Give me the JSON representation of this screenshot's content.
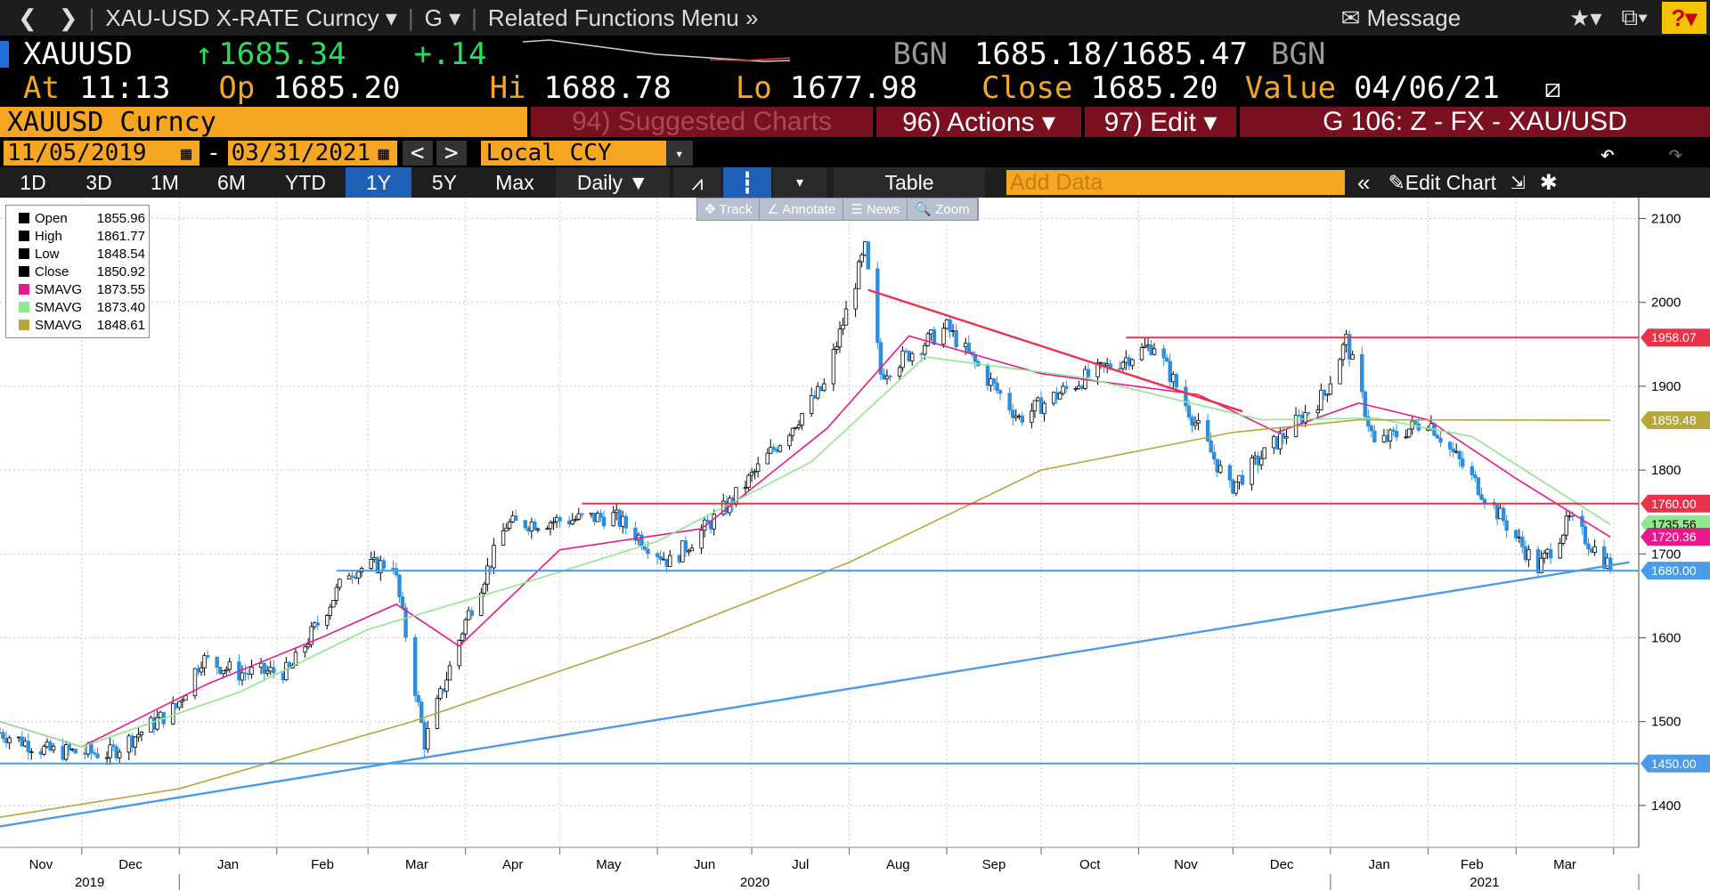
{
  "toolbar": {
    "back": "❮",
    "forward": "❯",
    "security": "XAU-USD X-RATE Curncy",
    "func": "G",
    "related": "Related Functions Menu",
    "message": "Message",
    "help": "?"
  },
  "quote": {
    "ticker": "XAUUSD",
    "arrow": "↑",
    "last": "1685.34",
    "change": "+.14",
    "bid_src": "BGN",
    "bid": "1685.18",
    "slash": "/",
    "ask": "1685.47",
    "ask_src": "BGN",
    "at_label": "At",
    "time": "11:13",
    "op_label": "Op",
    "open": "1685.20",
    "hi_label": "Hi",
    "high": "1688.78",
    "lo_label": "Lo",
    "low": "1677.98",
    "close_label": "Close",
    "close": "1685.20",
    "value_label": "Value",
    "value_date": "04/06/21"
  },
  "menu": {
    "security": "XAUUSD Curncy",
    "suggested": "94) Suggested Charts",
    "actions": "96) Actions ▾",
    "edit": "97) Edit ▾",
    "chart_id": "G 106: Z - FX - XAU/USD"
  },
  "range": {
    "start": "11/05/2019",
    "dash": "-",
    "end": "03/31/2021",
    "prev": "<",
    "next": ">",
    "currency": "Local CCY"
  },
  "periods": [
    "1D",
    "3D",
    "1M",
    "6M",
    "YTD",
    "1Y",
    "5Y",
    "Max"
  ],
  "active_period": "1Y",
  "frequency": "Daily ▼",
  "table_label": "Table",
  "add_data_placeholder": "Add Data",
  "edit_chart": "Edit Chart",
  "chart_tools": [
    "✥ Track",
    "∠ Annotate",
    "☰ News",
    "🔍 Zoom"
  ],
  "legend": [
    {
      "name": "Open",
      "value": "1855.96",
      "color": "#000000"
    },
    {
      "name": "High",
      "value": "1861.77",
      "color": "#000000"
    },
    {
      "name": "Low",
      "value": "1848.54",
      "color": "#000000"
    },
    {
      "name": "Close",
      "value": "1850.92",
      "color": "#000000"
    },
    {
      "name": "SMAVG",
      "value": "1873.55",
      "color": "#e8198b"
    },
    {
      "name": "SMAVG",
      "value": "1873.40",
      "color": "#8ee88e"
    },
    {
      "name": "SMAVG",
      "value": "1848.61",
      "color": "#b5a838"
    }
  ],
  "colors": {
    "up": "#000000",
    "down": "#2a8fe0",
    "sma1": "#e8198b",
    "sma2": "#8ee88e",
    "sma3": "#b5a838",
    "hline_red": "#e8334a",
    "hline_blue": "#4a9be8"
  },
  "chart_data": {
    "type": "candlestick",
    "x_range": [
      "2019-11-05",
      "2021-03-31"
    ],
    "ylim": [
      1350,
      2125
    ],
    "yticks": [
      1400,
      1500,
      1600,
      1700,
      1800,
      1900,
      2000,
      2100
    ],
    "month_labels": [
      "Nov",
      "Dec",
      "Jan",
      "Feb",
      "Mar",
      "Apr",
      "May",
      "Jun",
      "Jul",
      "Aug",
      "Sep",
      "Oct",
      "Nov",
      "Dec",
      "Jan",
      "Feb",
      "Mar"
    ],
    "year_labels": [
      "2019",
      "2020",
      "2021"
    ],
    "series": [
      {
        "name": "XAUUSD",
        "points": [
          [
            "2019-11-05",
            1487
          ],
          [
            "2019-11-20",
            1465
          ],
          [
            "2019-12-10",
            1462
          ],
          [
            "2019-12-31",
            1517
          ],
          [
            "2020-01-08",
            1575
          ],
          [
            "2020-01-20",
            1558
          ],
          [
            "2020-02-05",
            1560
          ],
          [
            "2020-02-24",
            1680
          ],
          [
            "2020-03-09",
            1690
          ],
          [
            "2020-03-19",
            1475
          ],
          [
            "2020-04-01",
            1620
          ],
          [
            "2020-04-14",
            1735
          ],
          [
            "2020-05-18",
            1745
          ],
          [
            "2020-06-05",
            1690
          ],
          [
            "2020-06-24",
            1760
          ],
          [
            "2020-07-24",
            1900
          ],
          [
            "2020-08-06",
            2063
          ],
          [
            "2020-08-11",
            1915
          ],
          [
            "2020-09-01",
            1970
          ],
          [
            "2020-09-24",
            1862
          ],
          [
            "2020-10-15",
            1910
          ],
          [
            "2020-11-06",
            1950
          ],
          [
            "2020-11-30",
            1778
          ],
          [
            "2020-12-30",
            1890
          ],
          [
            "2021-01-06",
            1955
          ],
          [
            "2021-01-15",
            1830
          ],
          [
            "2021-02-01",
            1860
          ],
          [
            "2021-02-26",
            1735
          ],
          [
            "2021-03-08",
            1683
          ],
          [
            "2021-03-18",
            1740
          ],
          [
            "2021-03-31",
            1685
          ]
        ]
      },
      {
        "name": "SMAVG",
        "color": "#e8198b",
        "points": [
          [
            "2019-11-05",
            1500
          ],
          [
            "2019-12-01",
            1470
          ],
          [
            "2020-01-10",
            1545
          ],
          [
            "2020-02-15",
            1600
          ],
          [
            "2020-03-10",
            1640
          ],
          [
            "2020-03-30",
            1590
          ],
          [
            "2020-05-01",
            1705
          ],
          [
            "2020-06-15",
            1730
          ],
          [
            "2020-07-25",
            1850
          ],
          [
            "2020-08-20",
            1960
          ],
          [
            "2020-10-01",
            1915
          ],
          [
            "2020-11-20",
            1890
          ],
          [
            "2020-12-15",
            1845
          ],
          [
            "2021-01-10",
            1880
          ],
          [
            "2021-02-01",
            1860
          ],
          [
            "2021-03-01",
            1790
          ],
          [
            "2021-03-31",
            1720
          ]
        ]
      },
      {
        "name": "SMAVG",
        "color": "#8ee88e",
        "points": [
          [
            "2019-11-05",
            1500
          ],
          [
            "2019-12-01",
            1470
          ],
          [
            "2020-01-20",
            1535
          ],
          [
            "2020-03-01",
            1610
          ],
          [
            "2020-04-15",
            1660
          ],
          [
            "2020-06-01",
            1715
          ],
          [
            "2020-07-20",
            1810
          ],
          [
            "2020-08-25",
            1935
          ],
          [
            "2020-10-15",
            1910
          ],
          [
            "2020-12-10",
            1860
          ],
          [
            "2021-01-15",
            1862
          ],
          [
            "2021-02-15",
            1840
          ],
          [
            "2021-03-31",
            1735
          ]
        ]
      },
      {
        "name": "SMAVG",
        "color": "#b5a838",
        "points": [
          [
            "2019-11-05",
            1386
          ],
          [
            "2020-01-01",
            1420
          ],
          [
            "2020-03-15",
            1500
          ],
          [
            "2020-06-01",
            1600
          ],
          [
            "2020-08-01",
            1690
          ],
          [
            "2020-10-01",
            1800
          ],
          [
            "2020-12-01",
            1845
          ],
          [
            "2021-01-10",
            1860
          ],
          [
            "2021-03-31",
            1859.48
          ]
        ]
      }
    ],
    "horizontal_lines": [
      {
        "value": 1958.07,
        "color": "#e8334a",
        "from": "2020-10-28"
      },
      {
        "value": 1760.0,
        "color": "#e8334a",
        "from": "2020-05-08"
      },
      {
        "value": 1680.0,
        "color": "#4a9be8",
        "from": "2020-02-20"
      },
      {
        "value": 1450.0,
        "color": "#4a9be8",
        "from": "2019-11-05"
      }
    ],
    "trendlines": [
      {
        "color": "#e8334a",
        "from": [
          "2020-08-07",
          2015
        ],
        "to": [
          "2020-12-04",
          1870
        ]
      },
      {
        "color": "#4a9be8",
        "from": [
          "2019-11-05",
          1375
        ],
        "to": [
          "2021-04-06",
          1690
        ]
      }
    ],
    "price_tags": [
      {
        "value": "1958.07",
        "bg": "#e8334a",
        "y": 1958.07
      },
      {
        "value": "1859.48",
        "bg": "#b5a838",
        "y": 1859.48
      },
      {
        "value": "1760.00",
        "bg": "#e8334a",
        "y": 1760
      },
      {
        "value": "1735.56",
        "bg": "#8ee88e",
        "y": 1735.56
      },
      {
        "value": "1720.36",
        "bg": "#e8198b",
        "y": 1720.36
      },
      {
        "value": "1680.00",
        "bg": "#4a9be8",
        "y": 1680
      },
      {
        "value": "1450.00",
        "bg": "#4a9be8",
        "y": 1450
      }
    ]
  }
}
